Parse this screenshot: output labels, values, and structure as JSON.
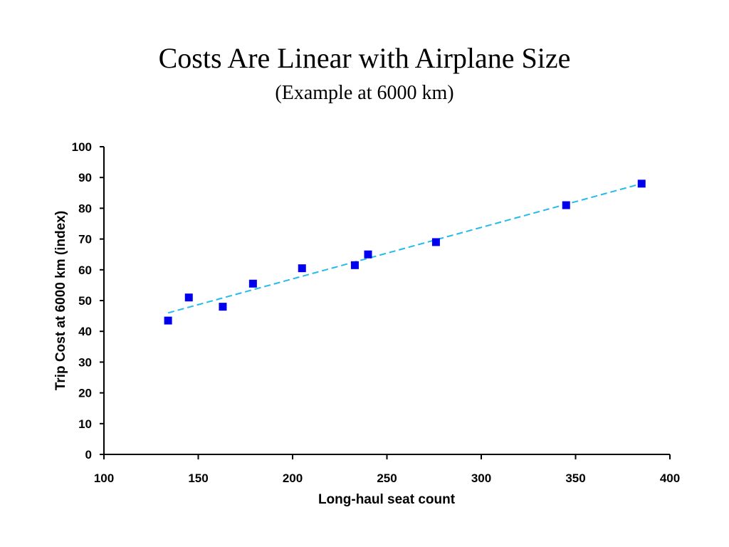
{
  "slide": {
    "title": "Costs Are Linear with Airplane Size",
    "subtitle": "(Example at 6000 km)"
  },
  "chart_data": {
    "type": "scatter",
    "xlabel": "Long-haul seat count",
    "ylabel": "Trip Cost at 6000 km (index)",
    "xlim": [
      100,
      400
    ],
    "ylim": [
      0,
      100
    ],
    "xticks": [
      100,
      150,
      200,
      250,
      300,
      350,
      400
    ],
    "yticks": [
      0,
      10,
      20,
      30,
      40,
      50,
      60,
      70,
      80,
      90,
      100
    ],
    "grid": false,
    "series": [
      {
        "marker": "square",
        "color": "#0000ee",
        "points": [
          [
            134,
            43.5
          ],
          [
            145,
            51
          ],
          [
            163,
            48
          ],
          [
            179,
            55.5
          ],
          [
            205,
            60.5
          ],
          [
            233,
            61.5
          ],
          [
            240,
            65
          ],
          [
            276,
            69
          ],
          [
            345,
            81
          ],
          [
            385,
            88
          ]
        ]
      }
    ],
    "trendline": {
      "style": "dashed",
      "color": "#22bbee",
      "from": [
        134,
        46
      ],
      "to": [
        385,
        88
      ]
    }
  }
}
